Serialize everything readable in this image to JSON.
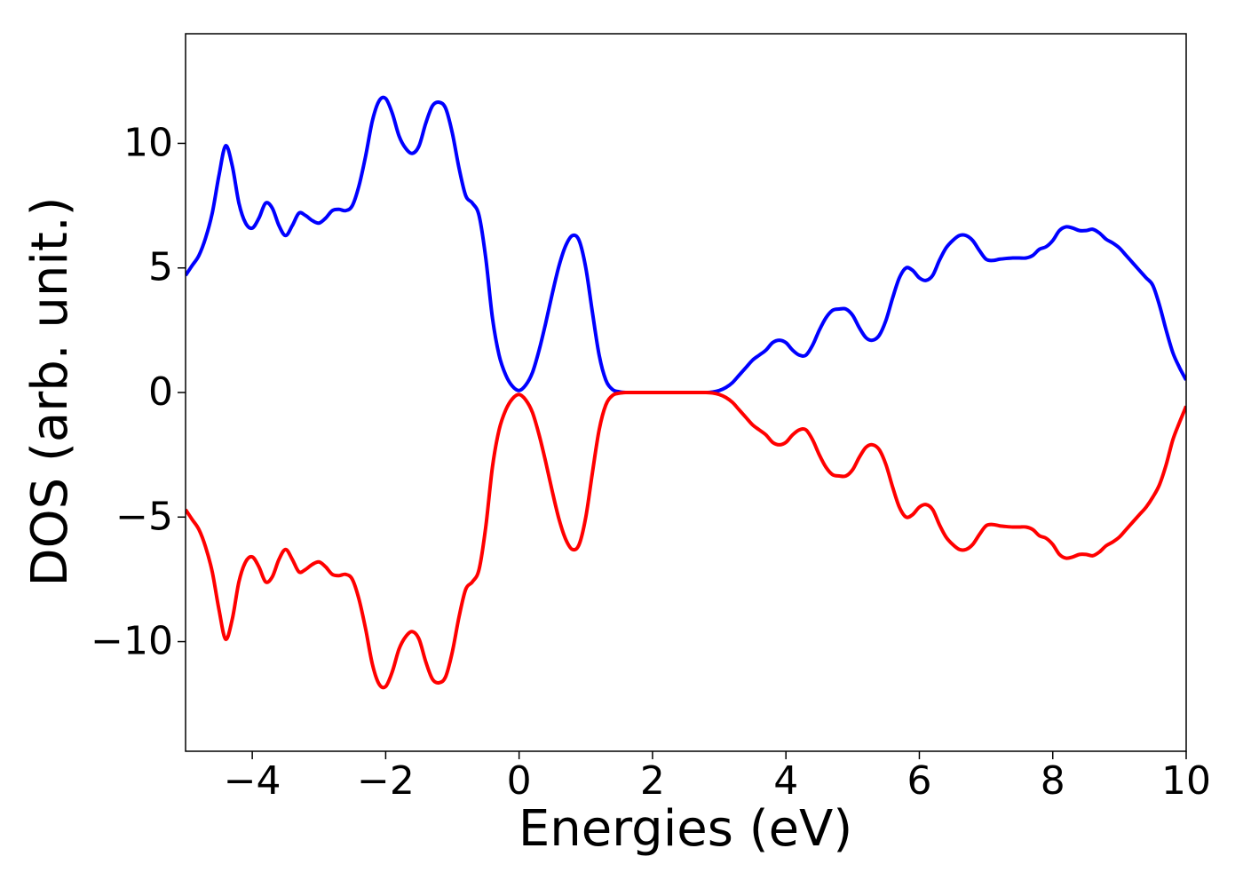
{
  "chart_data": {
    "type": "line",
    "xlabel": "Energies (eV)",
    "ylabel": "DOS (arb. unit.)",
    "xlim": [
      -5,
      10
    ],
    "ylim": [
      -14.4,
      14.4
    ],
    "xticks": [
      {
        "value": -4,
        "label": "−4"
      },
      {
        "value": -2,
        "label": "−2"
      },
      0,
      2,
      4,
      6,
      8,
      10
    ],
    "yticks": [
      {
        "value": -10,
        "label": "−10"
      },
      {
        "value": -5,
        "label": "−5"
      },
      0,
      5,
      10
    ],
    "grid": false,
    "x": [
      -5.0,
      -4.9,
      -4.8,
      -4.7,
      -4.6,
      -4.5,
      -4.4,
      -4.3,
      -4.2,
      -4.1,
      -4.0,
      -3.9,
      -3.8,
      -3.7,
      -3.6,
      -3.5,
      -3.4,
      -3.3,
      -3.2,
      -3.1,
      -3.0,
      -2.9,
      -2.8,
      -2.7,
      -2.6,
      -2.5,
      -2.4,
      -2.3,
      -2.2,
      -2.1,
      -2.0,
      -1.9,
      -1.8,
      -1.7,
      -1.6,
      -1.5,
      -1.4,
      -1.3,
      -1.2,
      -1.1,
      -1.0,
      -0.9,
      -0.8,
      -0.7,
      -0.6,
      -0.5,
      -0.4,
      -0.3,
      -0.2,
      -0.1,
      0.0,
      0.1,
      0.2,
      0.3,
      0.4,
      0.5,
      0.6,
      0.7,
      0.8,
      0.9,
      1.0,
      1.1,
      1.2,
      1.3,
      1.4,
      1.5,
      1.6,
      1.7,
      1.8,
      1.9,
      2.0,
      2.1,
      2.2,
      2.3,
      2.4,
      2.5,
      2.6,
      2.7,
      2.8,
      2.9,
      3.0,
      3.1,
      3.2,
      3.3,
      3.4,
      3.5,
      3.6,
      3.7,
      3.8,
      3.9,
      4.0,
      4.1,
      4.2,
      4.3,
      4.4,
      4.5,
      4.6,
      4.7,
      4.8,
      4.9,
      5.0,
      5.1,
      5.2,
      5.3,
      5.4,
      5.5,
      5.6,
      5.7,
      5.8,
      5.9,
      6.0,
      6.1,
      6.2,
      6.3,
      6.4,
      6.5,
      6.6,
      6.7,
      6.8,
      6.9,
      7.0,
      7.1,
      7.2,
      7.3,
      7.4,
      7.5,
      7.6,
      7.7,
      7.8,
      7.9,
      8.0,
      8.1,
      8.2,
      8.3,
      8.4,
      8.5,
      8.6,
      8.7,
      8.8,
      8.9,
      9.0,
      9.1,
      9.2,
      9.3,
      9.4,
      9.5,
      9.6,
      9.7,
      9.8,
      9.9,
      10.0
    ],
    "series": [
      {
        "color": "#0000ff",
        "values": [
          4.7,
          5.1,
          5.5,
          6.2,
          7.2,
          8.7,
          9.9,
          9.1,
          7.6,
          6.8,
          6.6,
          7.0,
          7.6,
          7.4,
          6.7,
          6.3,
          6.7,
          7.2,
          7.1,
          6.9,
          6.8,
          7.0,
          7.3,
          7.35,
          7.3,
          7.5,
          8.3,
          9.5,
          10.9,
          11.7,
          11.8,
          11.2,
          10.3,
          9.8,
          9.6,
          9.9,
          10.8,
          11.5,
          11.65,
          11.4,
          10.4,
          9.0,
          7.9,
          7.6,
          7.1,
          5.4,
          3.0,
          1.5,
          0.7,
          0.25,
          0.08,
          0.3,
          0.8,
          1.7,
          2.8,
          4.0,
          5.1,
          5.9,
          6.3,
          6.1,
          5.0,
          3.2,
          1.5,
          0.5,
          0.12,
          0.03,
          0,
          0,
          0,
          0,
          0,
          0,
          0,
          0,
          0,
          0,
          0,
          0,
          0,
          0.02,
          0.08,
          0.2,
          0.4,
          0.7,
          1.0,
          1.3,
          1.5,
          1.7,
          2.0,
          2.1,
          2.0,
          1.7,
          1.5,
          1.5,
          1.9,
          2.5,
          3.0,
          3.3,
          3.35,
          3.35,
          3.1,
          2.6,
          2.2,
          2.1,
          2.3,
          2.9,
          3.8,
          4.6,
          5.0,
          4.9,
          4.6,
          4.5,
          4.7,
          5.3,
          5.8,
          6.1,
          6.3,
          6.3,
          6.1,
          5.7,
          5.35,
          5.3,
          5.35,
          5.38,
          5.4,
          5.4,
          5.4,
          5.5,
          5.75,
          5.85,
          6.1,
          6.5,
          6.65,
          6.6,
          6.5,
          6.5,
          6.55,
          6.4,
          6.15,
          6.0,
          5.8,
          5.5,
          5.2,
          4.9,
          4.6,
          4.3,
          3.5,
          2.5,
          1.6,
          1.0,
          0.5
        ]
      },
      {
        "color": "#ff0000",
        "values": [
          -4.7,
          -5.1,
          -5.5,
          -6.2,
          -7.2,
          -8.7,
          -9.9,
          -9.1,
          -7.6,
          -6.8,
          -6.6,
          -7.0,
          -7.6,
          -7.4,
          -6.7,
          -6.3,
          -6.7,
          -7.2,
          -7.1,
          -6.9,
          -6.8,
          -7.0,
          -7.3,
          -7.35,
          -7.3,
          -7.5,
          -8.3,
          -9.5,
          -10.9,
          -11.7,
          -11.8,
          -11.2,
          -10.3,
          -9.8,
          -9.6,
          -9.9,
          -10.8,
          -11.5,
          -11.65,
          -11.4,
          -10.4,
          -9.0,
          -7.9,
          -7.6,
          -7.1,
          -5.4,
          -3.0,
          -1.5,
          -0.7,
          -0.25,
          -0.08,
          -0.3,
          -0.8,
          -1.7,
          -2.8,
          -4.0,
          -5.1,
          -5.9,
          -6.3,
          -6.1,
          -5.0,
          -3.2,
          -1.5,
          -0.5,
          -0.12,
          -0.03,
          0,
          0,
          0,
          0,
          0,
          0,
          0,
          0,
          0,
          0,
          0,
          0,
          0,
          -0.02,
          -0.08,
          -0.2,
          -0.4,
          -0.7,
          -1.0,
          -1.3,
          -1.5,
          -1.7,
          -2.0,
          -2.1,
          -2.0,
          -1.7,
          -1.5,
          -1.5,
          -1.9,
          -2.5,
          -3.0,
          -3.3,
          -3.35,
          -3.35,
          -3.1,
          -2.6,
          -2.2,
          -2.1,
          -2.3,
          -2.9,
          -3.8,
          -4.6,
          -5.0,
          -4.9,
          -4.6,
          -4.5,
          -4.7,
          -5.3,
          -5.8,
          -6.1,
          -6.3,
          -6.3,
          -6.1,
          -5.7,
          -5.35,
          -5.3,
          -5.35,
          -5.38,
          -5.4,
          -5.4,
          -5.4,
          -5.5,
          -5.75,
          -5.85,
          -6.1,
          -6.5,
          -6.65,
          -6.6,
          -6.5,
          -6.5,
          -6.55,
          -6.4,
          -6.15,
          -6.0,
          -5.8,
          -5.5,
          -5.2,
          -4.9,
          -4.6,
          -4.2,
          -3.7,
          -2.9,
          -1.9,
          -1.2,
          -0.55
        ]
      }
    ]
  }
}
